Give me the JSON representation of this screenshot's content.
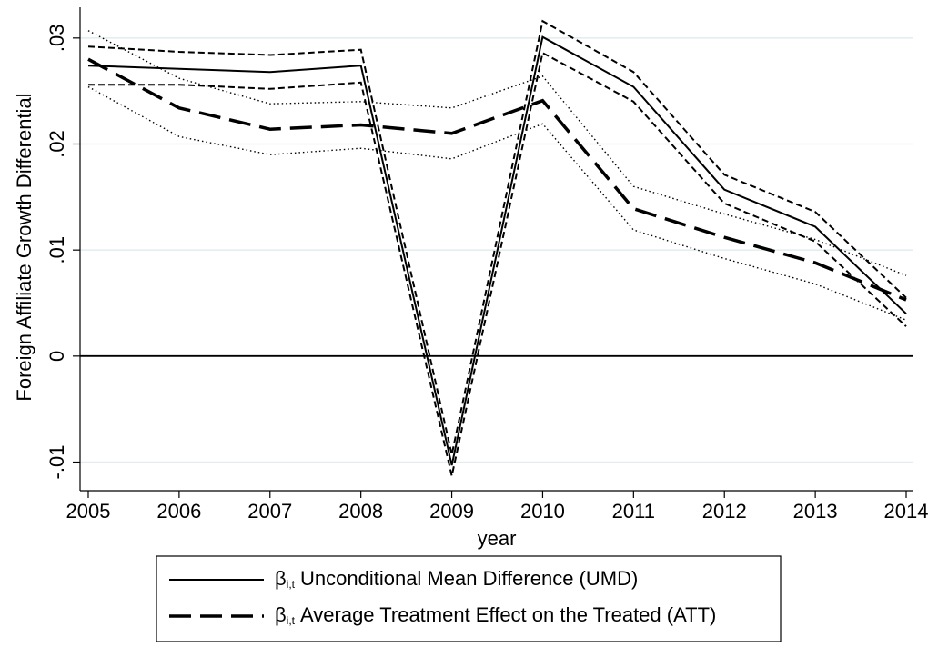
{
  "chart_data": {
    "type": "line",
    "y_label": "Foreign Affiliate Growth Differential",
    "x_label": "year",
    "x": [
      2005,
      2006,
      2007,
      2008,
      2009,
      2010,
      2011,
      2012,
      2013,
      2014
    ],
    "xlim": [
      2004.91,
      2014.08
    ],
    "xticks": [
      2005,
      2006,
      2007,
      2008,
      2009,
      2010,
      2011,
      2012,
      2013,
      2014
    ],
    "ylim": [
      -0.0127,
      0.0329
    ],
    "yticks": [
      {
        "value": -0.01,
        "label": "-.01"
      },
      0,
      {
        "value": 0.01,
        "label": ".01"
      },
      {
        "value": 0.02,
        "label": ".02"
      },
      {
        "value": 0.03,
        "label": ".03"
      }
    ],
    "grid": true,
    "reference_line": 0,
    "legend_symbol": "β",
    "legend_subscript": "i,t",
    "series": [
      {
        "name": "Unconditional Mean Difference (UMD)",
        "color": "#000000",
        "style": "solid",
        "ci_style": "dashed",
        "values": [
          0.0274,
          0.0271,
          0.0268,
          0.0274,
          -0.0103,
          0.0301,
          0.0254,
          0.0157,
          0.0122,
          0.004
        ],
        "upper": [
          0.0292,
          0.0287,
          0.0284,
          0.0289,
          -0.0093,
          0.0316,
          0.0268,
          0.0171,
          0.0136,
          0.0055
        ],
        "lower": [
          0.0256,
          0.0256,
          0.0252,
          0.0258,
          -0.0113,
          0.0286,
          0.024,
          0.0144,
          0.0108,
          0.0028
        ]
      },
      {
        "name": "Average Treatment Effect on the Treated (ATT)",
        "color": "#000000",
        "style": "longdash",
        "ci_style": "dotted",
        "values": [
          0.028,
          0.0234,
          0.0214,
          0.0218,
          0.021,
          0.0241,
          0.0139,
          0.0112,
          0.0088,
          0.0053
        ],
        "upper": [
          0.0307,
          0.0262,
          0.0238,
          0.024,
          0.0234,
          0.0264,
          0.016,
          0.0134,
          0.011,
          0.0076
        ],
        "lower": [
          0.0254,
          0.0207,
          0.019,
          0.0196,
          0.0186,
          0.0219,
          0.0119,
          0.0092,
          0.0068,
          0.0034
        ]
      }
    ]
  }
}
